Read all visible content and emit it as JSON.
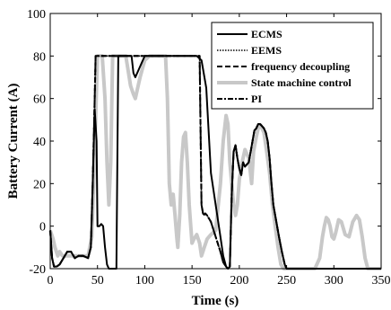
{
  "chart_data": {
    "type": "line",
    "title": "",
    "xlabel": "Time (s)",
    "ylabel": "Battery Current (A)",
    "xlim": [
      0,
      350
    ],
    "ylim": [
      -20,
      100
    ],
    "xticks": [
      0,
      50,
      100,
      150,
      200,
      250,
      300,
      350
    ],
    "yticks": [
      -20,
      0,
      20,
      40,
      60,
      80,
      100
    ],
    "grid": false,
    "legend_position": "top-right",
    "series": [
      {
        "name": "State machine control",
        "color": "#c8c8c8",
        "style": "solid",
        "x": [
          0,
          3,
          5,
          8,
          10,
          13,
          16,
          20,
          25,
          30,
          35,
          40,
          44,
          46,
          48,
          50,
          55,
          58,
          60,
          62,
          64,
          66,
          70,
          80,
          85,
          88,
          90,
          92,
          95,
          100,
          105,
          110,
          115,
          120,
          122,
          124,
          126,
          128,
          130,
          132,
          134,
          135,
          137,
          139,
          141,
          143,
          145,
          147,
          150,
          152,
          155,
          158,
          160,
          163,
          166,
          170,
          175,
          180,
          183,
          186,
          188,
          190,
          192,
          194,
          196,
          198,
          200,
          203,
          206,
          210,
          213,
          215,
          218,
          220,
          223,
          226,
          229,
          232,
          235,
          238,
          241,
          244,
          247,
          250,
          260,
          270,
          280,
          285,
          288,
          290,
          292,
          294,
          296,
          298,
          300,
          302,
          305,
          308,
          312,
          316,
          320,
          324,
          327,
          330,
          333,
          336,
          340,
          343,
          345,
          350
        ],
        "y": [
          -2,
          -6,
          -10,
          -14,
          -12,
          -14,
          -14,
          -14,
          -14,
          -14,
          -14,
          -14,
          -5,
          20,
          50,
          80,
          80,
          60,
          30,
          10,
          30,
          80,
          80,
          80,
          66,
          62,
          60,
          64,
          70,
          78,
          80,
          80,
          80,
          80,
          80,
          60,
          20,
          10,
          15,
          5,
          -6,
          -10,
          5,
          30,
          42,
          44,
          30,
          10,
          -8,
          -6,
          -4,
          -8,
          -14,
          -10,
          -6,
          -4,
          -2,
          20,
          40,
          52,
          48,
          30,
          20,
          10,
          5,
          10,
          22,
          30,
          36,
          32,
          20,
          35,
          42,
          46,
          47,
          44,
          35,
          25,
          10,
          0,
          -10,
          -18,
          -20,
          -20,
          -20,
          -20,
          -20,
          -15,
          -5,
          0,
          4,
          3,
          0,
          -5,
          -6,
          -3,
          3,
          2,
          -4,
          -5,
          2,
          5,
          3,
          -5,
          -15,
          -20,
          -20,
          -20,
          -20,
          -20
        ]
      },
      {
        "name": "ECMS",
        "color": "#000000",
        "style": "solid",
        "x": [
          0,
          2,
          4,
          7,
          10,
          14,
          18,
          22,
          26,
          30,
          35,
          40,
          43,
          45,
          47,
          49,
          50,
          52,
          54,
          56,
          58,
          60,
          62,
          64,
          66,
          68,
          70,
          72,
          75,
          80,
          85,
          86,
          88,
          90,
          100,
          110,
          120,
          130,
          140,
          150,
          155,
          160,
          165,
          170,
          175,
          180,
          183,
          186,
          188,
          190,
          192,
          194,
          196,
          198,
          200,
          202,
          204,
          206,
          208,
          210,
          212,
          214,
          216,
          218,
          220,
          222,
          224,
          226,
          228,
          230,
          232,
          234,
          236,
          238,
          240,
          242,
          245,
          248,
          250,
          260,
          280,
          300,
          320,
          340,
          345,
          350
        ],
        "y": [
          -2,
          -15,
          -19,
          -19,
          -18,
          -15,
          -12,
          -12,
          -15,
          -14,
          -14,
          -15,
          -10,
          20,
          55,
          40,
          0,
          0,
          1,
          0,
          -10,
          -18,
          -20,
          -20,
          -20,
          -20,
          -20,
          80,
          80,
          80,
          80,
          80,
          72,
          70,
          80,
          80,
          80,
          80,
          80,
          80,
          80,
          78,
          65,
          25,
          10,
          -5,
          -14,
          -19,
          -20,
          -19,
          15,
          35,
          38,
          32,
          27,
          24,
          30,
          28,
          29,
          30,
          35,
          40,
          45,
          46,
          48,
          48,
          47,
          46,
          44,
          40,
          32,
          20,
          10,
          5,
          0,
          -5,
          -12,
          -18,
          -20,
          -20,
          -20,
          -20,
          -20,
          -20,
          -20,
          -20
        ]
      },
      {
        "name": "EEMS",
        "color": "#000000",
        "style": "dotted",
        "x": [
          0,
          2,
          4,
          7,
          10,
          14,
          18,
          22,
          26,
          30,
          35,
          40,
          43,
          45,
          47,
          48,
          50,
          100,
          140,
          150,
          155,
          158,
          160,
          162,
          164,
          166,
          170,
          175,
          180,
          183,
          186,
          188,
          190,
          192,
          194,
          196,
          198,
          200,
          202,
          204,
          206,
          208,
          210,
          212,
          214,
          216,
          218,
          220,
          222,
          224,
          226,
          228,
          230,
          232,
          234,
          236,
          238,
          240,
          242,
          245,
          248,
          250,
          260,
          280,
          300,
          320,
          340,
          345,
          350
        ],
        "y": [
          -2,
          -15,
          -19,
          -19,
          -18,
          -15,
          -12,
          -12,
          -15,
          -14,
          -14,
          -15,
          -10,
          20,
          60,
          80,
          80,
          80,
          80,
          80,
          80,
          80,
          10,
          5,
          6,
          5,
          2,
          -5,
          -12,
          -17,
          -19,
          -20,
          -19,
          15,
          35,
          38,
          32,
          27,
          24,
          30,
          28,
          29,
          30,
          35,
          40,
          45,
          46,
          48,
          48,
          47,
          46,
          44,
          40,
          32,
          20,
          10,
          5,
          0,
          -5,
          -12,
          -18,
          -20,
          -20,
          -20,
          -20,
          -20,
          -20,
          -20,
          -20
        ]
      },
      {
        "name": "frequency decoupling",
        "color": "#000000",
        "style": "dashed",
        "x": [
          0,
          2,
          4,
          7,
          10,
          14,
          18,
          22,
          26,
          30,
          35,
          40,
          43,
          45,
          47,
          48,
          50,
          100,
          140,
          150,
          155,
          158,
          160,
          162,
          164,
          166,
          170,
          175,
          180,
          183,
          186,
          188,
          190,
          192,
          194,
          196,
          198,
          200,
          202,
          204,
          206,
          208,
          210,
          212,
          214,
          216,
          218,
          220,
          222,
          224,
          226,
          228,
          230,
          232,
          234,
          236,
          238,
          240,
          242,
          245,
          248,
          250,
          260,
          280,
          300,
          320,
          340,
          345,
          350
        ],
        "y": [
          -2,
          -15,
          -19,
          -19,
          -18,
          -15,
          -12,
          -12,
          -15,
          -14,
          -14,
          -15,
          -10,
          20,
          60,
          80,
          80,
          80,
          80,
          80,
          80,
          80,
          10,
          5,
          6,
          5,
          2,
          -5,
          -12,
          -17,
          -19,
          -20,
          -19,
          15,
          35,
          38,
          32,
          27,
          24,
          30,
          28,
          29,
          30,
          35,
          40,
          45,
          46,
          48,
          48,
          47,
          46,
          44,
          40,
          32,
          20,
          10,
          5,
          0,
          -5,
          -12,
          -18,
          -20,
          -20,
          -20,
          -20,
          -20,
          -20,
          -20,
          -20
        ]
      },
      {
        "name": "PI",
        "color": "#000000",
        "style": "dashdot",
        "x": [
          0,
          2,
          4,
          7,
          10,
          14,
          18,
          22,
          26,
          30,
          35,
          40,
          43,
          45,
          47,
          48,
          50,
          100,
          140,
          150,
          155,
          158,
          160,
          162,
          164,
          166,
          170,
          175,
          180,
          183,
          186,
          188,
          190,
          192,
          194,
          196,
          198,
          200,
          202,
          204,
          206,
          208,
          210,
          212,
          214,
          216,
          218,
          220,
          222,
          224,
          226,
          228,
          230,
          232,
          234,
          236,
          238,
          240,
          242,
          245,
          248,
          250,
          260,
          280,
          300,
          320,
          340,
          345,
          350
        ],
        "y": [
          -2,
          -15,
          -19,
          -19,
          -18,
          -15,
          -12,
          -12,
          -15,
          -14,
          -14,
          -15,
          -10,
          20,
          60,
          80,
          80,
          80,
          80,
          80,
          80,
          80,
          10,
          5,
          6,
          5,
          2,
          -5,
          -12,
          -17,
          -19,
          -20,
          -19,
          15,
          35,
          38,
          32,
          27,
          24,
          30,
          28,
          29,
          30,
          35,
          40,
          45,
          46,
          48,
          48,
          47,
          46,
          44,
          40,
          32,
          20,
          10,
          5,
          0,
          -5,
          -12,
          -18,
          -20,
          -20,
          -20,
          -20,
          -20,
          -20,
          -20,
          -20
        ]
      }
    ]
  }
}
